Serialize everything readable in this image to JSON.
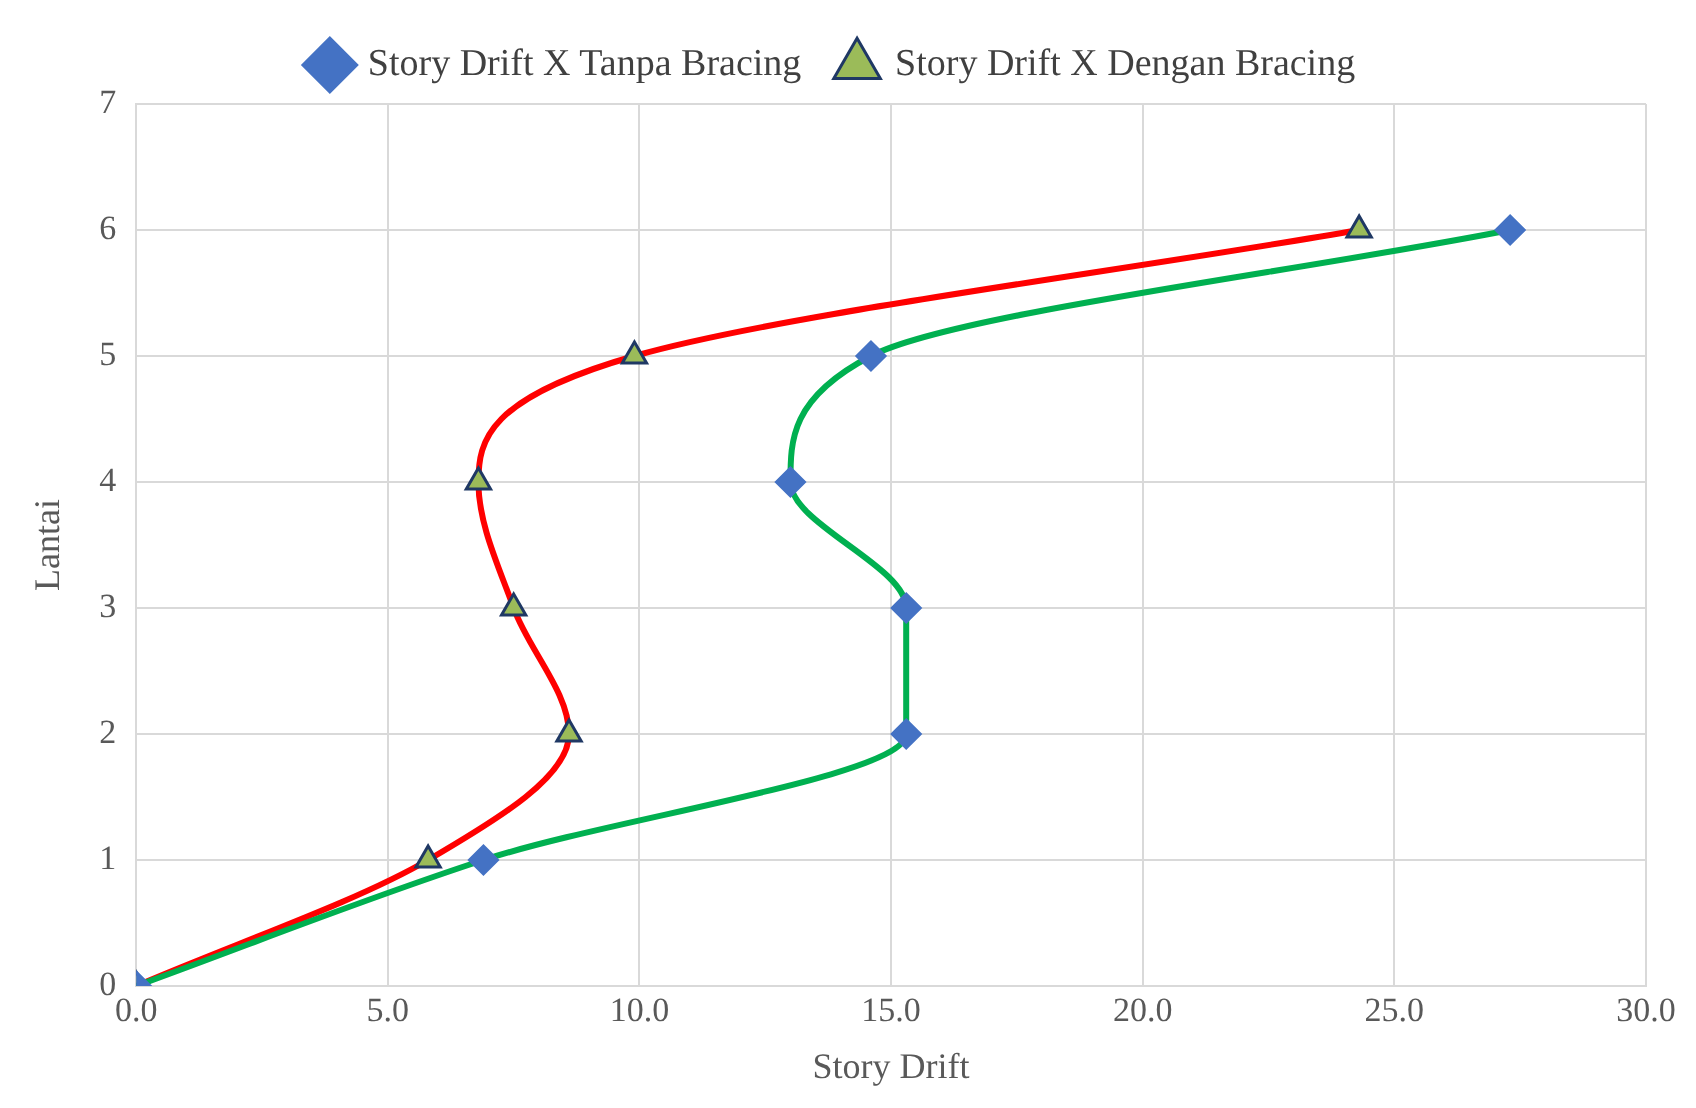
{
  "chart_data": {
    "type": "line",
    "xlabel": "Story Drift",
    "ylabel": "Lantai",
    "series": [
      {
        "name": "Story Drift X Tanpa Bracing",
        "color": "#00b050",
        "marker": "diamond",
        "x": [
          0,
          6.9,
          15.3,
          15.3,
          13.0,
          14.6,
          27.3
        ],
        "values": [
          0,
          1,
          2,
          3,
          4,
          5,
          6
        ]
      },
      {
        "name": "Story Drift X Dengan Bracing",
        "color": "#ff0000",
        "marker": "triangle",
        "x": [
          0,
          5.8,
          8.6,
          7.5,
          6.8,
          9.9,
          24.3
        ],
        "values": [
          0,
          1,
          2,
          3,
          4,
          5,
          6
        ]
      }
    ],
    "xlim": [
      0,
      30
    ],
    "xticks": [
      {
        "value": 0,
        "label": "0.0"
      },
      {
        "value": 5,
        "label": "5.0"
      },
      {
        "value": 10,
        "label": "10.0"
      },
      {
        "value": 15,
        "label": "15.0"
      },
      {
        "value": 20,
        "label": "20.0"
      },
      {
        "value": 25,
        "label": "25.0"
      },
      {
        "value": 30,
        "label": "30.0"
      }
    ],
    "ylim": [
      0,
      7
    ],
    "yticks": [
      0,
      1,
      2,
      3,
      4,
      5,
      6,
      7
    ],
    "grid": true,
    "legend": "top"
  }
}
